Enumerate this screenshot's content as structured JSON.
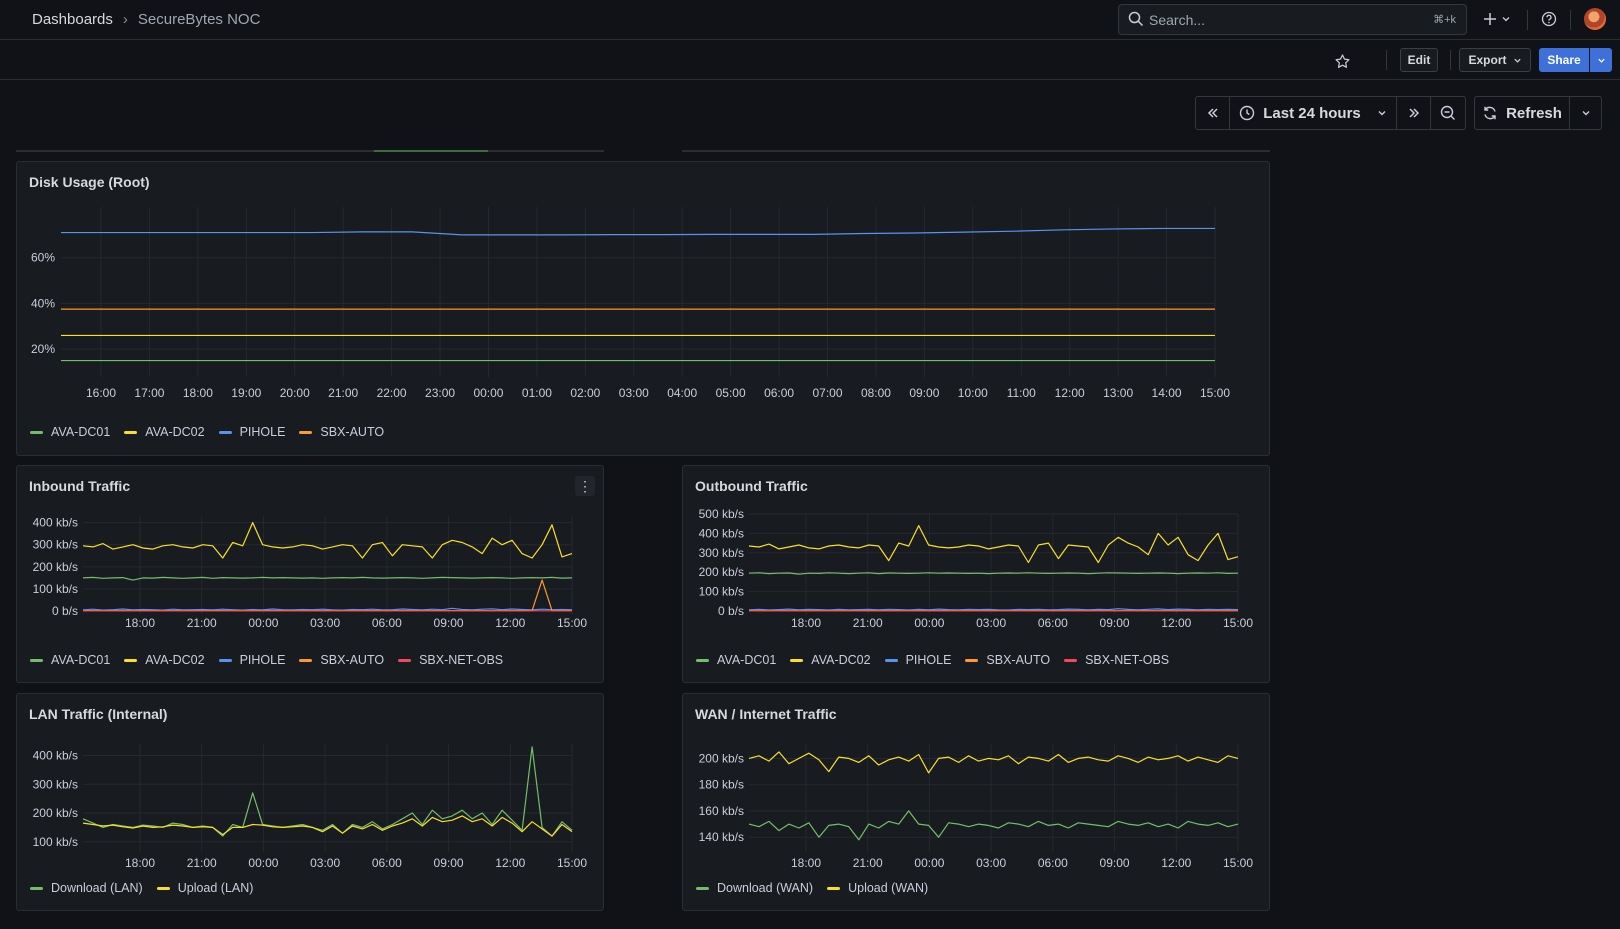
{
  "breadcrumb": {
    "root": "Dashboards",
    "current": "SecureBytes NOC"
  },
  "search": {
    "placeholder": "Search...",
    "shortcut": "⌘+k"
  },
  "toolbar": {
    "edit": "Edit",
    "export": "Export",
    "share": "Share"
  },
  "timepicker": {
    "range": "Last 24 hours",
    "refresh": "Refresh"
  },
  "colors": {
    "green": "#73bf69",
    "yellow": "#fade2a",
    "blue": "#5794f2",
    "orange": "#ff9830",
    "red": "#f2495c",
    "accent": "#3d71d9"
  },
  "panels": {
    "disk": {
      "title": "Disk Usage (Root)",
      "legend": [
        "AVA-DC01",
        "AVA-DC02",
        "PIHOLE",
        "SBX-AUTO"
      ]
    },
    "inbound": {
      "title": "Inbound Traffic",
      "legend": [
        "AVA-DC01",
        "AVA-DC02",
        "PIHOLE",
        "SBX-AUTO",
        "SBX-NET-OBS"
      ]
    },
    "outbound": {
      "title": "Outbound Traffic",
      "legend": [
        "AVA-DC01",
        "AVA-DC02",
        "PIHOLE",
        "SBX-AUTO",
        "SBX-NET-OBS"
      ]
    },
    "lan": {
      "title": "LAN Traffic (Internal)",
      "legend": [
        "Download (LAN)",
        "Upload (LAN)"
      ]
    },
    "wan": {
      "title": "WAN / Internet Traffic",
      "legend": [
        "Download (WAN)",
        "Upload (WAN)"
      ]
    }
  },
  "chart_data": [
    {
      "type": "line",
      "title": "Disk Usage (Root)",
      "x": [
        "16:00",
        "17:00",
        "18:00",
        "19:00",
        "20:00",
        "21:00",
        "22:00",
        "23:00",
        "00:00",
        "01:00",
        "02:00",
        "03:00",
        "04:00",
        "05:00",
        "06:00",
        "07:00",
        "08:00",
        "09:00",
        "10:00",
        "11:00",
        "12:00",
        "13:00",
        "14:00",
        "15:00"
      ],
      "ytick_labels": [
        "20%",
        "40%",
        "60%"
      ],
      "ylim": [
        10,
        80
      ],
      "series": [
        {
          "name": "AVA-DC01",
          "color": "#73bf69",
          "values": [
            15,
            15,
            15,
            15,
            15,
            15,
            15,
            15,
            15,
            15,
            15,
            15,
            15,
            15,
            15,
            15,
            15,
            15,
            15,
            15,
            15,
            15,
            15,
            15
          ]
        },
        {
          "name": "AVA-DC02",
          "color": "#fade2a",
          "values": [
            26,
            26,
            26,
            26,
            26,
            26,
            26,
            26,
            26,
            26,
            26,
            26,
            26,
            26,
            26,
            26,
            26,
            26,
            26,
            26,
            26,
            26,
            26,
            26
          ]
        },
        {
          "name": "PIHOLE",
          "color": "#5794f2",
          "values": [
            71,
            71,
            71,
            71,
            71,
            71,
            71.3,
            71.3,
            70,
            70,
            70,
            70.1,
            70.1,
            70.2,
            70.2,
            70.2,
            70.6,
            70.8,
            71.2,
            71.6,
            72.2,
            72.6,
            72.8,
            72.8
          ]
        },
        {
          "name": "SBX-AUTO",
          "color": "#ff9830",
          "values": [
            37.5,
            37.5,
            37.5,
            37.5,
            37.5,
            37.5,
            37.5,
            37.5,
            37.5,
            37.5,
            37.5,
            37.5,
            37.5,
            37.5,
            37.5,
            37.5,
            37.5,
            37.5,
            37.5,
            37.5,
            37.5,
            37.5,
            37.5,
            37.5
          ]
        }
      ],
      "grid": true,
      "legend": "bottom"
    },
    {
      "type": "line",
      "title": "Inbound Traffic",
      "xtick_labels": [
        "18:00",
        "21:00",
        "00:00",
        "03:00",
        "06:00",
        "09:00",
        "12:00",
        "15:00"
      ],
      "ytick_labels": [
        "0 b/s",
        "100 kb/s",
        "200 kb/s",
        "300 kb/s",
        "400 kb/s"
      ],
      "ylim": [
        0,
        430
      ],
      "series": [
        {
          "name": "AVA-DC01",
          "color": "#73bf69",
          "values": [
            150,
            152,
            148,
            150,
            151,
            140,
            150,
            149,
            152,
            150,
            148,
            150,
            152,
            148,
            151,
            150,
            149,
            150,
            152,
            150,
            151,
            150,
            149,
            150,
            148,
            150,
            151,
            150,
            152,
            150,
            149,
            150,
            151,
            150,
            148,
            150,
            152,
            151,
            150,
            149,
            150,
            151,
            150,
            148,
            150,
            151,
            150,
            152,
            149,
            150
          ]
        },
        {
          "name": "AVA-DC02",
          "color": "#fade2a",
          "values": [
            295,
            290,
            305,
            280,
            290,
            300,
            285,
            280,
            295,
            300,
            290,
            285,
            300,
            295,
            240,
            310,
            295,
            400,
            300,
            290,
            285,
            290,
            300,
            295,
            280,
            290,
            300,
            295,
            240,
            300,
            310,
            250,
            300,
            295,
            290,
            240,
            300,
            320,
            310,
            290,
            260,
            330,
            300,
            320,
            260,
            240,
            300,
            390,
            245,
            260
          ]
        },
        {
          "name": "PIHOLE",
          "color": "#5794f2",
          "values": [
            5,
            8,
            4,
            6,
            9,
            5,
            7,
            6,
            4,
            8,
            5,
            6,
            7,
            5,
            8,
            6,
            4,
            7,
            5,
            9,
            6,
            5,
            7,
            6,
            8,
            5,
            4,
            7,
            6,
            8,
            5,
            6,
            9,
            7,
            5,
            8,
            6,
            12,
            7,
            5,
            8,
            10,
            6,
            9,
            7,
            5,
            8,
            6,
            7,
            6
          ]
        },
        {
          "name": "SBX-AUTO",
          "color": "#ff9830",
          "values": [
            2,
            2,
            2,
            2,
            2,
            2,
            2,
            2,
            2,
            2,
            2,
            2,
            2,
            2,
            2,
            2,
            2,
            2,
            2,
            2,
            2,
            2,
            2,
            2,
            2,
            2,
            2,
            2,
            2,
            2,
            2,
            2,
            2,
            2,
            2,
            2,
            2,
            2,
            2,
            2,
            2,
            2,
            2,
            2,
            2,
            2,
            140,
            2,
            2,
            2
          ]
        },
        {
          "name": "SBX-NET-OBS",
          "color": "#f2495c",
          "values": [
            1,
            1,
            1,
            1,
            1,
            1,
            1,
            1,
            1,
            1,
            1,
            1,
            1,
            1,
            1,
            1,
            1,
            1,
            1,
            1,
            1,
            1,
            1,
            1,
            1,
            1,
            1,
            1,
            1,
            1,
            1,
            1,
            1,
            1,
            1,
            1,
            1,
            1,
            1,
            1,
            1,
            1,
            1,
            1,
            1,
            1,
            1,
            1,
            1,
            1
          ]
        }
      ],
      "grid": true,
      "legend": "bottom"
    },
    {
      "type": "line",
      "title": "Outbound Traffic",
      "xtick_labels": [
        "18:00",
        "21:00",
        "00:00",
        "03:00",
        "06:00",
        "09:00",
        "12:00",
        "15:00"
      ],
      "ytick_labels": [
        "0 b/s",
        "100 kb/s",
        "200 kb/s",
        "300 kb/s",
        "400 kb/s",
        "500 kb/s"
      ],
      "ylim": [
        0,
        500
      ],
      "series": [
        {
          "name": "AVA-DC01",
          "color": "#73bf69",
          "values": [
            195,
            197,
            193,
            195,
            196,
            190,
            195,
            194,
            197,
            195,
            193,
            195,
            197,
            193,
            196,
            195,
            194,
            195,
            197,
            195,
            196,
            195,
            194,
            195,
            193,
            195,
            196,
            195,
            197,
            195,
            194,
            195,
            196,
            195,
            193,
            195,
            197,
            196,
            195,
            194,
            195,
            196,
            195,
            193,
            195,
            196,
            195,
            197,
            194,
            195
          ]
        },
        {
          "name": "AVA-DC02",
          "color": "#fade2a",
          "values": [
            335,
            330,
            345,
            320,
            330,
            340,
            325,
            320,
            335,
            340,
            330,
            325,
            340,
            335,
            260,
            350,
            335,
            440,
            340,
            330,
            325,
            330,
            340,
            335,
            320,
            330,
            340,
            335,
            250,
            340,
            350,
            270,
            340,
            335,
            330,
            250,
            340,
            380,
            350,
            330,
            290,
            400,
            340,
            380,
            290,
            260,
            340,
            400,
            265,
            280
          ]
        },
        {
          "name": "PIHOLE",
          "color": "#5794f2",
          "values": [
            6,
            9,
            5,
            7,
            10,
            6,
            8,
            7,
            5,
            9,
            6,
            7,
            8,
            6,
            9,
            7,
            5,
            8,
            6,
            10,
            7,
            6,
            8,
            7,
            9,
            6,
            5,
            8,
            7,
            9,
            6,
            7,
            10,
            8,
            6,
            9,
            7,
            12,
            8,
            6,
            9,
            11,
            7,
            10,
            8,
            6,
            9,
            7,
            8,
            7
          ]
        },
        {
          "name": "SBX-AUTO",
          "color": "#ff9830",
          "values": [
            2,
            2,
            2,
            2,
            2,
            2,
            2,
            2,
            2,
            2,
            2,
            2,
            2,
            2,
            2,
            2,
            2,
            2,
            2,
            2,
            2,
            2,
            2,
            2,
            2,
            2,
            2,
            2,
            2,
            2,
            2,
            2,
            2,
            2,
            2,
            2,
            2,
            2,
            2,
            2,
            2,
            2,
            2,
            2,
            2,
            2,
            2,
            2,
            2,
            2
          ]
        },
        {
          "name": "SBX-NET-OBS",
          "color": "#f2495c",
          "values": [
            1,
            1,
            1,
            1,
            1,
            1,
            1,
            1,
            1,
            1,
            1,
            1,
            1,
            1,
            1,
            1,
            1,
            1,
            1,
            1,
            1,
            1,
            1,
            1,
            1,
            1,
            1,
            1,
            1,
            1,
            1,
            1,
            1,
            1,
            1,
            1,
            1,
            1,
            1,
            1,
            1,
            1,
            1,
            1,
            1,
            1,
            1,
            1,
            1,
            1
          ]
        }
      ],
      "grid": true,
      "legend": "bottom"
    },
    {
      "type": "line",
      "title": "LAN Traffic (Internal)",
      "xtick_labels": [
        "18:00",
        "21:00",
        "00:00",
        "03:00",
        "06:00",
        "09:00",
        "12:00",
        "15:00"
      ],
      "ytick_labels": [
        "100 kb/s",
        "200 kb/s",
        "300 kb/s",
        "400 kb/s"
      ],
      "ylim": [
        75,
        440
      ],
      "series": [
        {
          "name": "Download (LAN)",
          "color": "#73bf69",
          "values": [
            180,
            165,
            150,
            160,
            155,
            150,
            158,
            155,
            150,
            165,
            160,
            150,
            155,
            150,
            120,
            160,
            150,
            270,
            160,
            155,
            150,
            155,
            160,
            150,
            140,
            160,
            130,
            160,
            150,
            170,
            145,
            160,
            180,
            200,
            160,
            210,
            180,
            190,
            210,
            180,
            200,
            160,
            210,
            175,
            140,
            430,
            150,
            120,
            170,
            140
          ]
        },
        {
          "name": "Upload (LAN)",
          "color": "#fade2a",
          "values": [
            165,
            160,
            155,
            158,
            152,
            148,
            155,
            150,
            152,
            158,
            155,
            150,
            152,
            150,
            125,
            150,
            150,
            160,
            158,
            152,
            150,
            152,
            155,
            150,
            135,
            155,
            130,
            155,
            145,
            160,
            140,
            155,
            165,
            180,
            155,
            185,
            170,
            175,
            190,
            170,
            180,
            155,
            185,
            165,
            135,
            170,
            145,
            120,
            160,
            135
          ]
        }
      ],
      "grid": true,
      "legend": "bottom"
    },
    {
      "type": "line",
      "title": "WAN / Internet Traffic",
      "xtick_labels": [
        "18:00",
        "21:00",
        "00:00",
        "03:00",
        "06:00",
        "09:00",
        "12:00",
        "15:00"
      ],
      "ytick_labels": [
        "140 kb/s",
        "160 kb/s",
        "180 kb/s",
        "200 kb/s"
      ],
      "ylim": [
        131,
        211
      ],
      "series": [
        {
          "name": "Download (WAN)",
          "color": "#73bf69",
          "values": [
            150,
            148,
            152,
            145,
            150,
            147,
            151,
            140,
            149,
            150,
            148,
            138,
            150,
            147,
            152,
            150,
            160,
            150,
            149,
            140,
            151,
            150,
            148,
            150,
            149,
            147,
            151,
            150,
            148,
            152,
            149,
            150,
            147,
            151,
            150,
            149,
            148,
            152,
            150,
            149,
            151,
            148,
            150,
            147,
            152,
            150,
            149,
            151,
            148,
            150
          ]
        },
        {
          "name": "Upload (WAN)",
          "color": "#fade2a",
          "values": [
            200,
            202,
            198,
            205,
            196,
            200,
            204,
            199,
            190,
            201,
            200,
            197,
            202,
            195,
            199,
            201,
            198,
            203,
            189,
            200,
            201,
            197,
            202,
            198,
            200,
            199,
            202,
            196,
            201,
            200,
            198,
            203,
            197,
            200,
            201,
            199,
            198,
            202,
            200,
            197,
            201,
            199,
            200,
            202,
            198,
            201,
            199,
            197,
            202,
            200
          ]
        }
      ],
      "grid": true,
      "legend": "bottom"
    }
  ]
}
